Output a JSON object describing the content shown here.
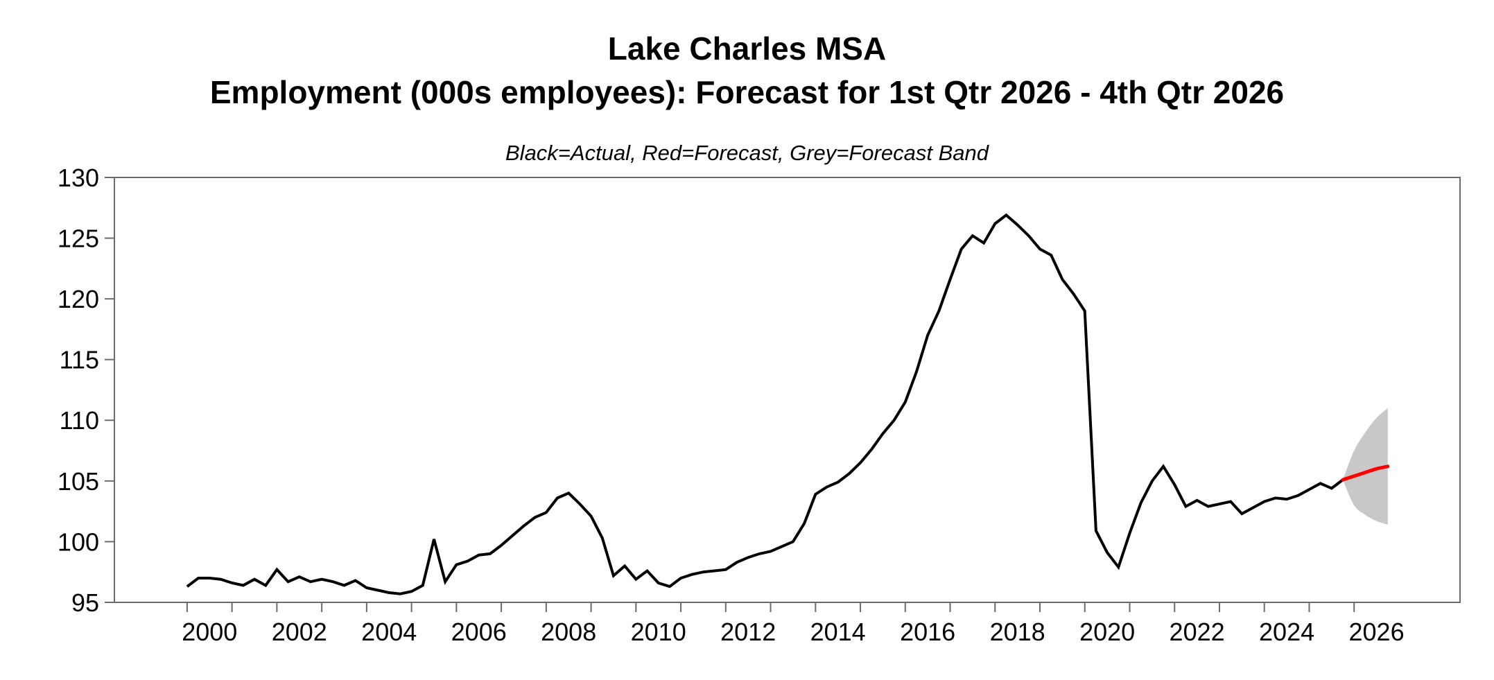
{
  "title": {
    "line1": "Lake Charles MSA",
    "line2": "Employment (000s employees): Forecast for 1st Qtr 2026 - 4th Qtr 2026"
  },
  "subtitle": "Black=Actual, Red=Forecast, Grey=Forecast Band",
  "colors": {
    "actual_line": "#000000",
    "forecast_line": "#ff0000",
    "forecast_band": "#c8c8c8",
    "frame": "#6b6b6b",
    "tick_label": "#000000",
    "background": "#ffffff"
  },
  "chart_data": {
    "type": "line",
    "title": "Lake Charles MSA",
    "subtitle": "Employment (000s employees): Forecast for 1st Qtr 2026 - 4th Qtr 2026",
    "legend_note": "Black=Actual, Red=Forecast, Grey=Forecast Band",
    "xlabel": "",
    "ylabel": "",
    "grid": false,
    "legend_position": "none",
    "xlim": [
      1998.38,
      2028.36
    ],
    "ylim": [
      95,
      130
    ],
    "yticks": [
      95,
      100,
      105,
      110,
      115,
      120,
      125,
      130
    ],
    "xticks": [
      2000,
      2001,
      2002,
      2003,
      2004,
      2005,
      2006,
      2007,
      2008,
      2009,
      2010,
      2011,
      2012,
      2013,
      2014,
      2015,
      2016,
      2017,
      2018,
      2019,
      2020,
      2021,
      2022,
      2023,
      2024,
      2025,
      2026
    ],
    "xtick_labels": [
      2000,
      2002,
      2004,
      2006,
      2008,
      2010,
      2012,
      2014,
      2016,
      2018,
      2020,
      2022,
      2024,
      2026
    ],
    "series": [
      {
        "name": "Actual",
        "style": "solid",
        "color_key": "actual_line",
        "x_start": 2000.0,
        "x_step": 0.25,
        "values": [
          96.3,
          97.0,
          97.0,
          96.9,
          96.6,
          96.4,
          96.9,
          96.4,
          97.7,
          96.7,
          97.1,
          96.7,
          96.9,
          96.7,
          96.4,
          96.8,
          96.2,
          96.0,
          95.8,
          95.7,
          95.9,
          96.4,
          100.2,
          96.7,
          98.1,
          98.4,
          98.9,
          99.0,
          99.7,
          100.5,
          101.3,
          102.0,
          102.4,
          103.6,
          104.0,
          103.1,
          102.1,
          100.3,
          97.2,
          98.0,
          96.9,
          97.6,
          96.6,
          96.3,
          97.0,
          97.3,
          97.5,
          97.6,
          97.7,
          98.3,
          98.7,
          99.0,
          99.2,
          99.6,
          100.0,
          101.5,
          103.9,
          104.5,
          104.9,
          105.6,
          106.5,
          107.6,
          108.9,
          110.0,
          111.5,
          114.0,
          117.0,
          119.0,
          121.6,
          124.1,
          125.2,
          124.6,
          126.2,
          126.9,
          126.1,
          125.2,
          124.1,
          123.6,
          121.6,
          120.4,
          119.0,
          100.9,
          99.1,
          97.9,
          100.7,
          103.2,
          105.0,
          106.2,
          104.7,
          102.9,
          103.4,
          102.9,
          103.1,
          103.3,
          102.3,
          102.8,
          103.3,
          103.6,
          103.5,
          103.8,
          104.3,
          104.8,
          104.4,
          105.1
        ]
      },
      {
        "name": "Forecast",
        "style": "solid",
        "color_key": "forecast_line",
        "x": [
          2025.75,
          2026.0,
          2026.25,
          2026.5,
          2026.75
        ],
        "values": [
          105.1,
          105.4,
          105.7,
          106.0,
          106.2
        ]
      },
      {
        "name": "Forecast Band",
        "style": "area",
        "color_key": "forecast_band",
        "x": [
          2025.75,
          2026.0,
          2026.25,
          2026.5,
          2026.75
        ],
        "top": [
          105.1,
          107.5,
          109.0,
          110.2,
          111.0
        ],
        "bottom": [
          105.1,
          103.0,
          102.2,
          101.7,
          101.4
        ]
      }
    ]
  }
}
